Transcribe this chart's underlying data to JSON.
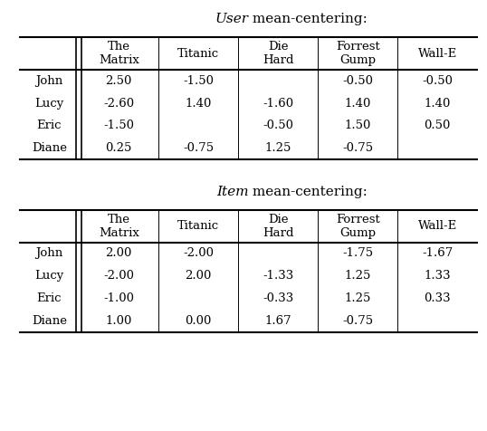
{
  "title1_italic": "User",
  "title1_rest": " mean-centering:",
  "title2_italic": "Item",
  "title2_rest": " mean-centering:",
  "col_labels": [
    "The\nMatrix",
    "Titanic",
    "Die\nHard",
    "Forrest\nGump",
    "Wall-E"
  ],
  "row_labels": [
    "John",
    "Lucy",
    "Eric",
    "Diane"
  ],
  "data1": [
    [
      "2.50",
      "-1.50",
      "",
      "-0.50",
      "-0.50"
    ],
    [
      "-2.60",
      "1.40",
      "-1.60",
      "1.40",
      "1.40"
    ],
    [
      "-1.50",
      "",
      "-0.50",
      "1.50",
      "0.50"
    ],
    [
      "0.25",
      "-0.75",
      "1.25",
      "-0.75",
      ""
    ]
  ],
  "data2": [
    [
      "2.00",
      "-2.00",
      "",
      "-1.75",
      "-1.67"
    ],
    [
      "-2.00",
      "2.00",
      "-1.33",
      "1.25",
      "1.33"
    ],
    [
      "-1.00",
      "",
      "-0.33",
      "1.25",
      "0.33"
    ],
    [
      "1.00",
      "0.00",
      "1.67",
      "-0.75",
      ""
    ]
  ],
  "bg_color": "#ffffff",
  "text_color": "#000000",
  "font_size": 9.5,
  "title_font_size": 11
}
